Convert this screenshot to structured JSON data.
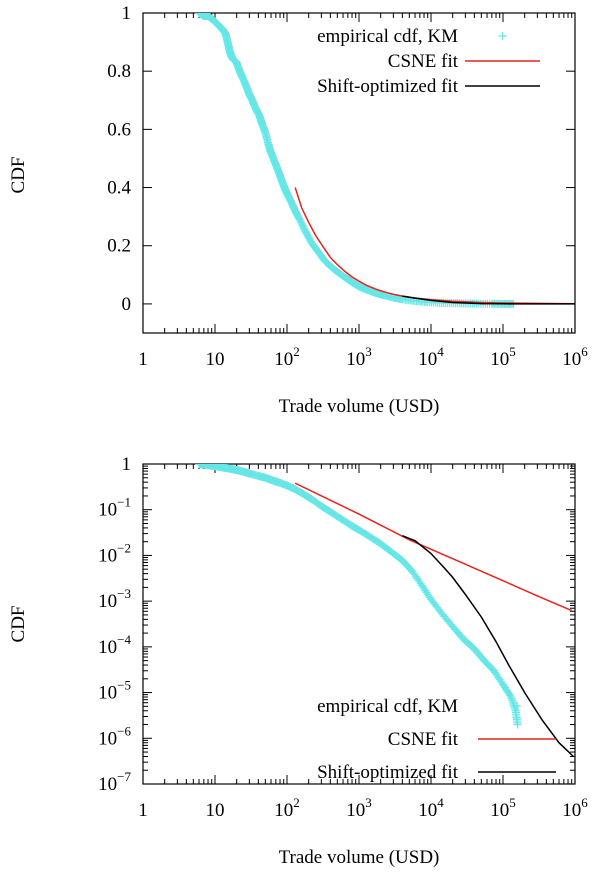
{
  "chart_data": [
    {
      "type": "scatter",
      "xlabel": "Trade volume (USD)",
      "ylabel": "CDF",
      "xscale": "log",
      "yscale": "linear",
      "xlim": [
        1,
        1000000
      ],
      "ylim": [
        -0.1,
        1.0
      ],
      "xticks": [
        {
          "value": 1,
          "label": "1"
        },
        {
          "value": 10,
          "label": "10"
        },
        {
          "value": 100,
          "label": "10",
          "exp": "2"
        },
        {
          "value": 1000,
          "label": "10",
          "exp": "3"
        },
        {
          "value": 10000,
          "label": "10",
          "exp": "4"
        },
        {
          "value": 100000,
          "label": "10",
          "exp": "5"
        },
        {
          "value": 1000000,
          "label": "10",
          "exp": "6"
        }
      ],
      "yticks": [
        {
          "value": 0,
          "label": "0"
        },
        {
          "value": 0.2,
          "label": "0.2"
        },
        {
          "value": 0.4,
          "label": "0.4"
        },
        {
          "value": 0.6,
          "label": "0.6"
        },
        {
          "value": 0.8,
          "label": "0.8"
        },
        {
          "value": 1,
          "label": "1"
        }
      ],
      "legend_position": "top-right",
      "series": [
        {
          "name": "empirical cdf, KM",
          "kind": "markers",
          "marker": "plus",
          "color": "#66e6e6",
          "x": [
            6,
            7,
            8,
            9,
            10,
            11,
            12,
            13,
            14,
            15,
            16,
            17,
            18,
            20,
            22,
            24,
            27,
            30,
            33,
            37,
            41,
            45,
            50,
            55,
            60,
            67,
            75,
            83,
            92,
            100,
            115,
            130,
            150,
            180,
            220,
            270,
            330,
            400,
            500,
            650,
            800,
            1000,
            1300,
            1700,
            2200,
            3000,
            4000,
            6000,
            9000,
            15000,
            25000,
            40000,
            70000,
            100000,
            140000
          ],
          "y": [
            1.0,
            0.99,
            0.99,
            0.98,
            0.97,
            0.96,
            0.95,
            0.94,
            0.93,
            0.9,
            0.87,
            0.85,
            0.84,
            0.83,
            0.8,
            0.78,
            0.75,
            0.72,
            0.7,
            0.67,
            0.65,
            0.62,
            0.59,
            0.55,
            0.52,
            0.49,
            0.46,
            0.43,
            0.4,
            0.38,
            0.35,
            0.32,
            0.29,
            0.25,
            0.21,
            0.18,
            0.15,
            0.13,
            0.11,
            0.09,
            0.075,
            0.06,
            0.048,
            0.038,
            0.03,
            0.022,
            0.016,
            0.01,
            0.006,
            0.003,
            0.002,
            0.001,
            0.0005,
            0.0002,
            5e-05
          ]
        },
        {
          "name": "CSNE fit",
          "kind": "line",
          "color": "#e8231e",
          "x": [
            130,
            160,
            200,
            250,
            320,
            400,
            500,
            650,
            800,
            1000,
            1300,
            1700,
            2200,
            3000,
            4000,
            6000,
            10000,
            20000,
            50000,
            100000,
            300000,
            1000000
          ],
          "y": [
            0.4,
            0.33,
            0.28,
            0.235,
            0.195,
            0.16,
            0.135,
            0.11,
            0.093,
            0.078,
            0.063,
            0.051,
            0.042,
            0.033,
            0.027,
            0.02,
            0.014,
            0.009,
            0.005,
            0.0032,
            0.0016,
            0.0006
          ]
        },
        {
          "name": "Shift-optimized fit",
          "kind": "line",
          "color": "#000000",
          "x": [
            4000,
            6000,
            10000,
            20000,
            50000,
            100000,
            200000,
            500000,
            1000000
          ],
          "y": [
            0.027,
            0.02,
            0.012,
            0.005,
            0.0012,
            0.0003,
            6e-05,
            6e-06,
            4e-07
          ]
        }
      ]
    },
    {
      "type": "scatter",
      "xlabel": "Trade volume (USD)",
      "ylabel": "CDF",
      "xscale": "log",
      "yscale": "log",
      "xlim": [
        1,
        1000000
      ],
      "ylim": [
        1e-07,
        1.0
      ],
      "xticks": [
        {
          "value": 1,
          "label": "1"
        },
        {
          "value": 10,
          "label": "10"
        },
        {
          "value": 100,
          "label": "10",
          "exp": "2"
        },
        {
          "value": 1000,
          "label": "10",
          "exp": "3"
        },
        {
          "value": 10000,
          "label": "10",
          "exp": "4"
        },
        {
          "value": 100000,
          "label": "10",
          "exp": "5"
        },
        {
          "value": 1000000,
          "label": "10",
          "exp": "6"
        }
      ],
      "yticks": [
        {
          "value": 1,
          "label": "1"
        },
        {
          "value": 0.1,
          "label": "10",
          "exp": "−1"
        },
        {
          "value": 0.01,
          "label": "10",
          "exp": "−2"
        },
        {
          "value": 0.001,
          "label": "10",
          "exp": "−3"
        },
        {
          "value": 0.0001,
          "label": "10",
          "exp": "−4"
        },
        {
          "value": 1e-05,
          "label": "10",
          "exp": "−5"
        },
        {
          "value": 1e-06,
          "label": "10",
          "exp": "−6"
        },
        {
          "value": 1e-07,
          "label": "10",
          "exp": "−7"
        }
      ],
      "legend_position": "bottom-right",
      "series": [
        {
          "name": "empirical cdf, KM",
          "kind": "markers",
          "marker": "plus",
          "color": "#66e6e6",
          "x": [
            6,
            7,
            8,
            9,
            10,
            12,
            14,
            17,
            20,
            25,
            30,
            40,
            50,
            60,
            75,
            100,
            130,
            170,
            220,
            300,
            400,
            550,
            750,
            1000,
            1400,
            2000,
            2800,
            4000,
            5500,
            7500,
            10000,
            14000,
            20000,
            28000,
            40000,
            55000,
            75000,
            100000,
            130000,
            150000,
            160000
          ],
          "y": [
            1.0,
            0.98,
            0.95,
            0.92,
            0.9,
            0.86,
            0.82,
            0.78,
            0.74,
            0.68,
            0.62,
            0.55,
            0.5,
            0.45,
            0.4,
            0.34,
            0.28,
            0.22,
            0.17,
            0.12,
            0.09,
            0.065,
            0.047,
            0.036,
            0.026,
            0.018,
            0.012,
            0.0078,
            0.0045,
            0.0022,
            0.0011,
            0.00055,
            0.00028,
            0.00015,
            9e-05,
            5e-05,
            3e-05,
            1.5e-05,
            8e-06,
            4e-06,
            2e-06
          ]
        },
        {
          "name": "CSNE fit",
          "kind": "line",
          "color": "#e8231e",
          "x": [
            130,
            1000,
            5000,
            20000,
            100000,
            300000,
            900000
          ],
          "y": [
            0.38,
            0.08,
            0.022,
            0.0085,
            0.0028,
            0.0013,
            0.00062
          ]
        },
        {
          "name": "Shift-optimized fit",
          "kind": "line",
          "color": "#000000",
          "x": [
            4000,
            6000,
            10000,
            15000,
            20000,
            30000,
            50000,
            80000,
            120000,
            200000,
            350000,
            600000,
            950000
          ],
          "y": [
            0.027,
            0.021,
            0.011,
            0.0055,
            0.0033,
            0.0014,
            0.00045,
            0.00013,
            4e-05,
            1e-05,
            2.5e-06,
            8e-07,
            4e-07
          ]
        }
      ]
    }
  ]
}
